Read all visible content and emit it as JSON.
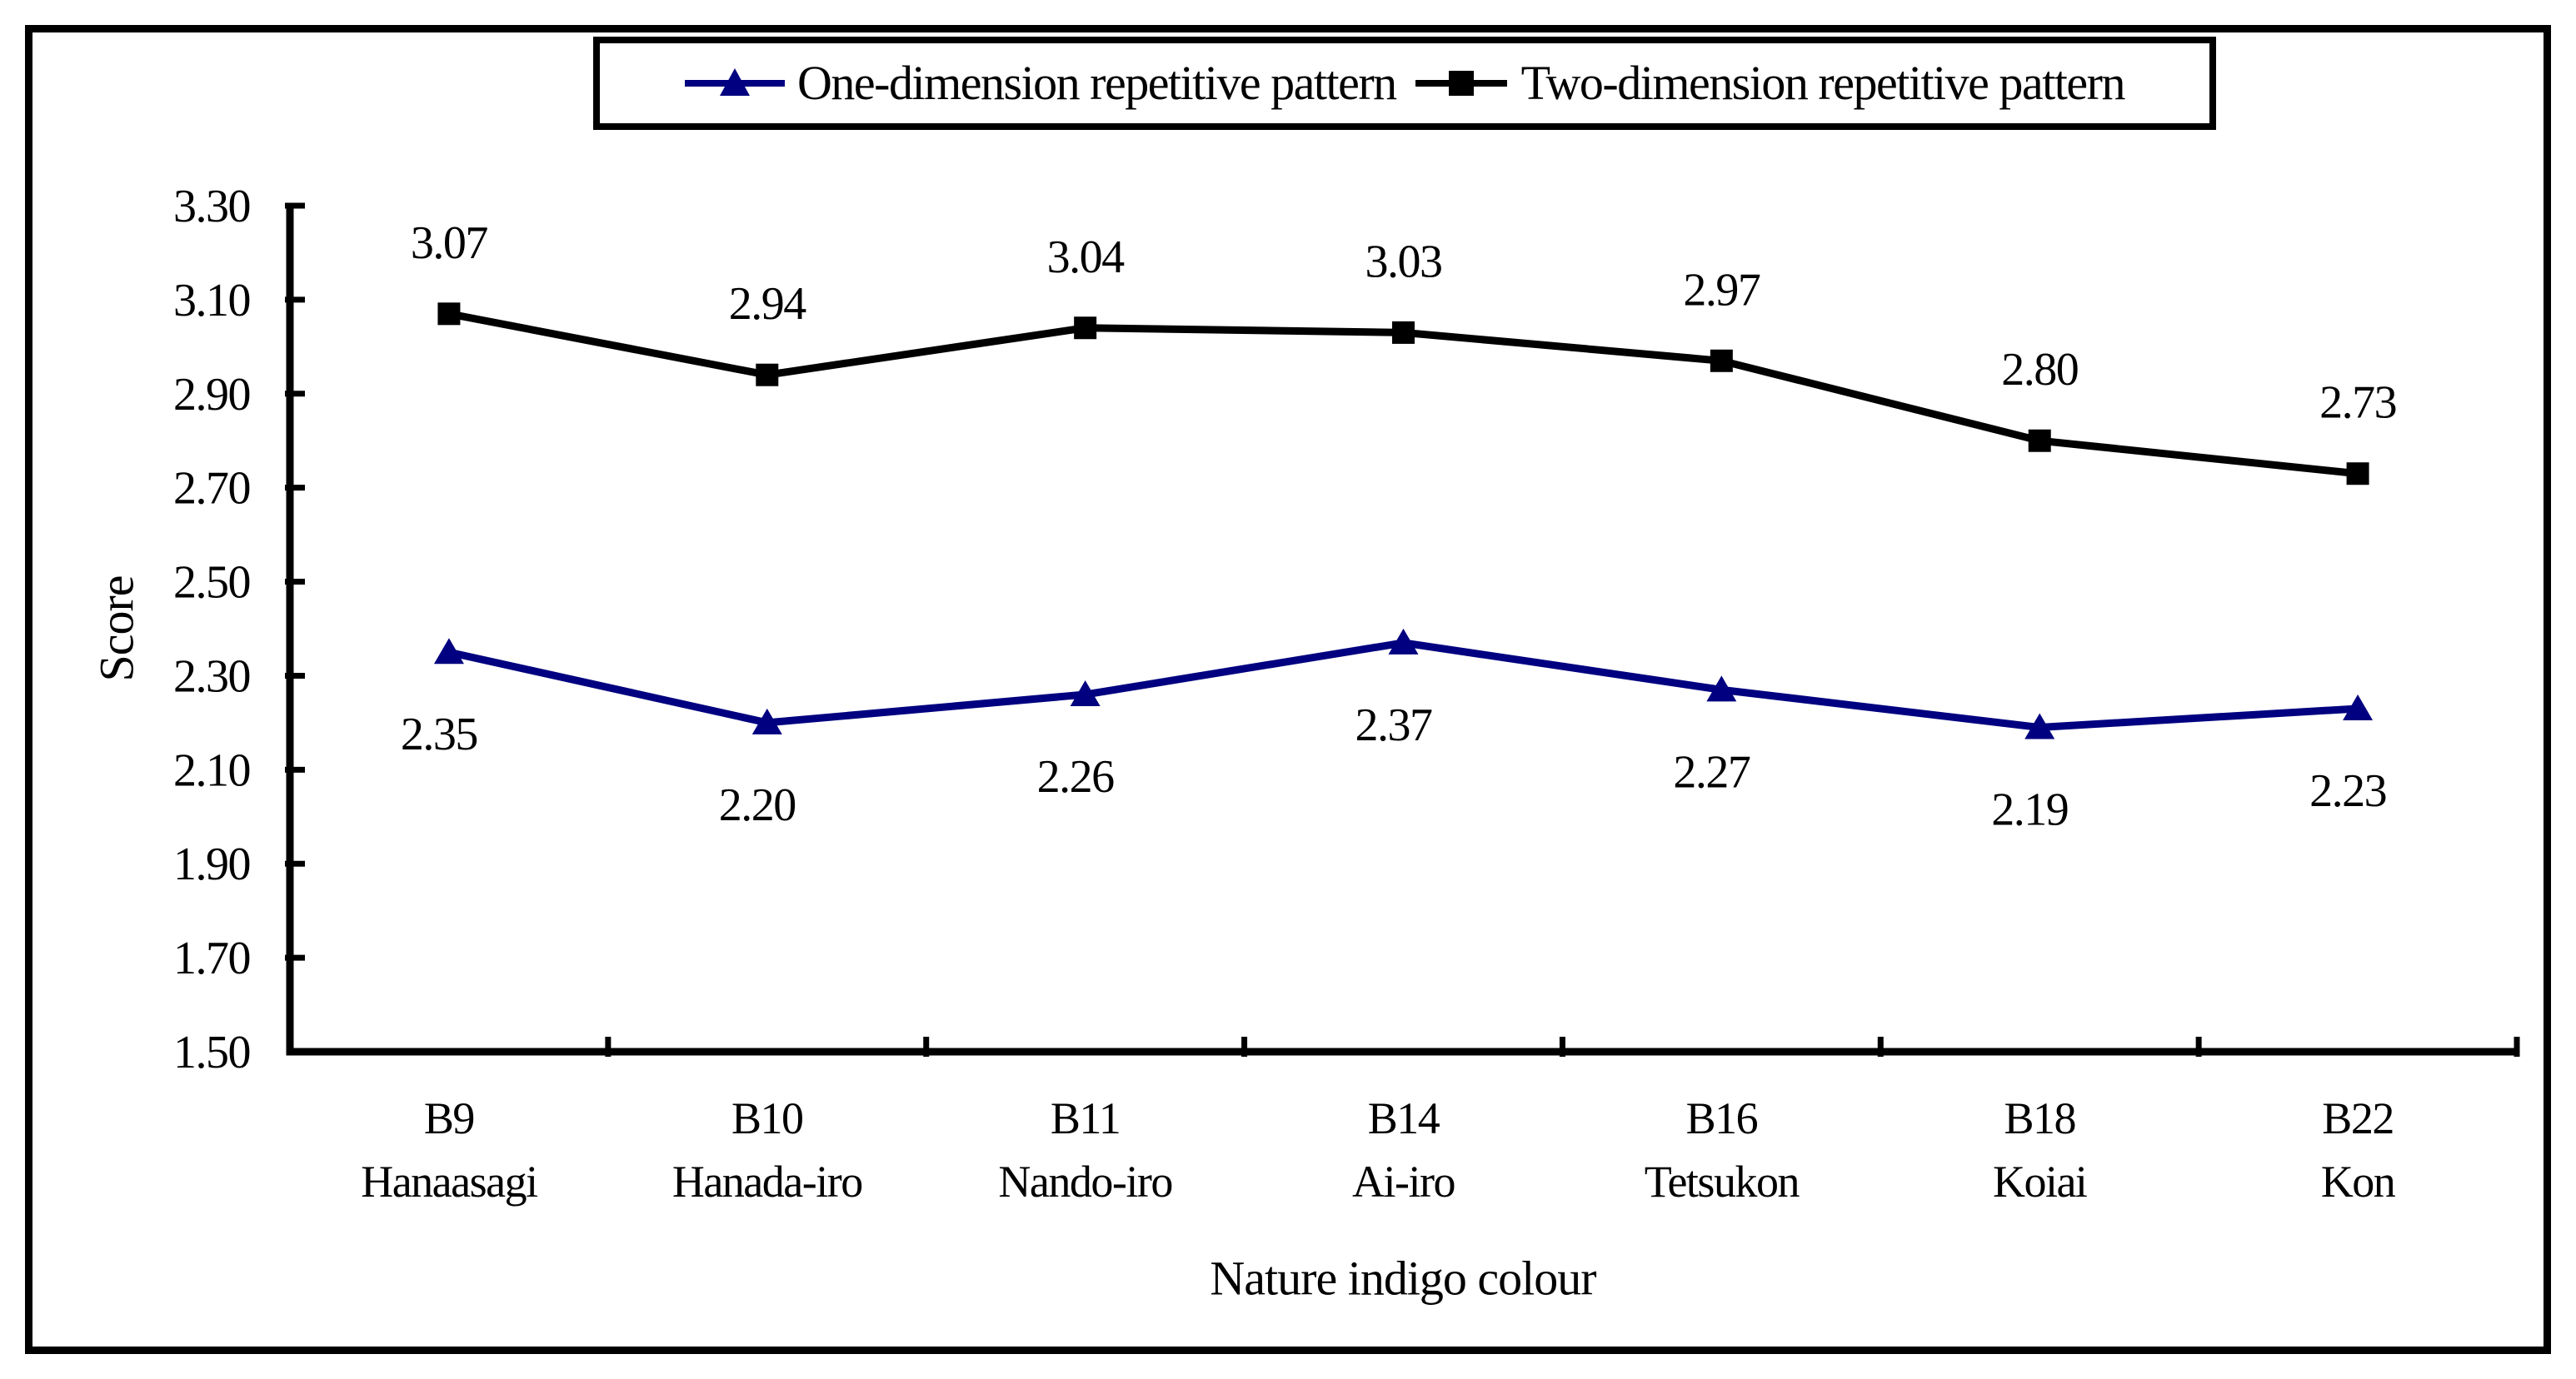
{
  "chart_data": {
    "type": "line",
    "title": "",
    "xlabel": "Nature indigo colour",
    "ylabel": "Score",
    "ylim": [
      1.5,
      3.3
    ],
    "ytick_step": 0.2,
    "ytick_labels": [
      "3.30",
      "3.10",
      "2.90",
      "2.70",
      "2.50",
      "2.30",
      "2.10",
      "1.90",
      "1.70",
      "1.50"
    ],
    "grid": false,
    "legend_position": "top-center",
    "categories": [
      "B9",
      "B10",
      "B11",
      "B14",
      "B16",
      "B18",
      "B22"
    ],
    "category_sublabels": [
      "Hanaasagi",
      "Hanada-iro",
      "Nando-iro",
      "Ai-iro",
      "Tetsukon",
      "Koiai",
      "Kon"
    ],
    "series": [
      {
        "name": "One-dimension repetitive pattern",
        "marker": "triangle",
        "color": "#000080",
        "values": [
          2.35,
          2.2,
          2.26,
          2.37,
          2.27,
          2.19,
          2.23
        ],
        "value_labels": [
          "2.35",
          "2.20",
          "2.26",
          "2.37",
          "2.27",
          "2.19",
          "2.23"
        ],
        "label_position": "below"
      },
      {
        "name": "Two-dimension repetitive pattern",
        "marker": "square",
        "color": "#000000",
        "values": [
          3.07,
          2.94,
          3.04,
          3.03,
          2.97,
          2.8,
          2.73
        ],
        "value_labels": [
          "3.07",
          "2.94",
          "3.04",
          "3.03",
          "2.97",
          "2.80",
          "2.73"
        ],
        "label_position": "above"
      }
    ]
  },
  "colors": {
    "background": "#ffffff",
    "border": "#000000",
    "axis": "#000000",
    "text": "#000000",
    "series_one": "#000080",
    "series_two": "#000000"
  }
}
